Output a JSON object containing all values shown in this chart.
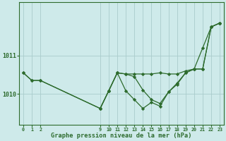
{
  "background_color": "#ceeaea",
  "grid_color": "#aacccc",
  "line_color": "#2d6b2d",
  "marker_color": "#2d6b2d",
  "xlabel": "Graphe pression niveau de la mer (hPa)",
  "ytick_labels": [
    "1010",
    "1011"
  ],
  "ytick_vals": [
    1010,
    1011
  ],
  "xtick_labels": [
    "0",
    "1",
    "2",
    "9",
    "10",
    "11",
    "12",
    "13",
    "14",
    "15",
    "16",
    "17",
    "18",
    "19",
    "20",
    "21",
    "22",
    "23"
  ],
  "xtick_positions": [
    0,
    1,
    2,
    9,
    10,
    11,
    12,
    13,
    14,
    15,
    16,
    17,
    18,
    19,
    20,
    21,
    22,
    23
  ],
  "xlim": [
    -0.5,
    23.5
  ],
  "ylim": [
    1009.2,
    1012.4
  ],
  "series1_x": [
    0,
    1,
    2,
    9,
    10,
    11,
    12,
    13,
    14,
    15,
    16,
    17,
    18,
    19,
    20,
    21,
    22,
    23
  ],
  "series1_y": [
    1010.55,
    1010.35,
    1010.35,
    1009.62,
    1010.08,
    1010.55,
    1010.52,
    1010.52,
    1010.52,
    1010.52,
    1010.55,
    1010.52,
    1010.52,
    1010.6,
    1010.65,
    1010.65,
    1011.75,
    1011.85
  ],
  "series2_x": [
    0,
    1,
    2,
    9,
    10,
    11,
    12,
    13,
    14,
    15,
    16,
    17,
    18,
    19,
    20,
    21,
    22,
    23
  ],
  "series2_y": [
    1010.55,
    1010.35,
    1010.35,
    1009.62,
    1010.08,
    1010.55,
    1010.52,
    1010.45,
    1010.1,
    1009.85,
    1009.75,
    1010.05,
    1010.28,
    1010.55,
    1010.65,
    1011.2,
    1011.75,
    1011.85
  ],
  "series3_x": [
    9,
    10,
    11,
    12,
    13,
    14,
    15,
    16,
    17,
    18,
    19,
    20,
    21,
    22,
    23
  ],
  "series3_y": [
    1009.62,
    1010.08,
    1010.55,
    1010.08,
    1009.85,
    1009.62,
    1009.78,
    1009.68,
    1010.05,
    1010.25,
    1010.55,
    1010.65,
    1010.65,
    1011.75,
    1011.85
  ]
}
